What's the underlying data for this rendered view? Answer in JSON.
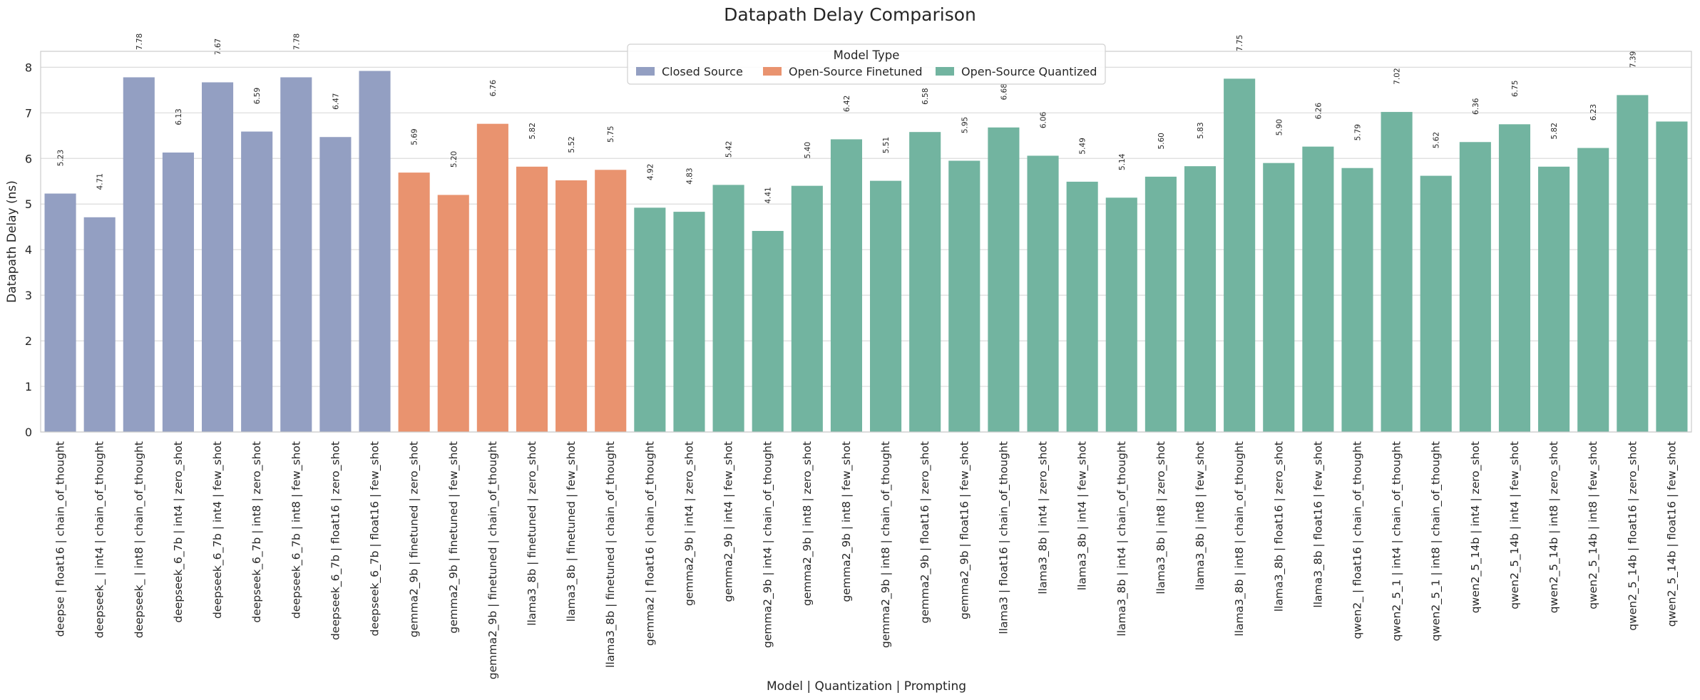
{
  "chart_data": {
    "type": "bar",
    "title": "Datapath Delay Comparison",
    "xlabel": "Model | Quantization | Prompting",
    "ylabel": "Datapath Delay (ns)",
    "ylim": [
      0,
      8.35
    ],
    "yticks": [
      "0",
      "1",
      "2",
      "3",
      "4",
      "5",
      "6",
      "7",
      "8"
    ],
    "grid": true,
    "legend": {
      "title": "Model Type",
      "placement": "top-center",
      "entries": [
        {
          "name": "Closed Source",
          "color": "#939fc2"
        },
        {
          "name": "Open-Source Finetuned",
          "color": "#e9936f"
        },
        {
          "name": "Open-Source Quantized",
          "color": "#72b4a0"
        }
      ]
    },
    "bars": [
      {
        "category": "deepse | float16 | chain_of_thought",
        "value": 5.23,
        "label": "5.23",
        "group": 0
      },
      {
        "category": "deepseek_ | int4 | chain_of_thought",
        "value": 4.71,
        "label": "4.71",
        "group": 0
      },
      {
        "category": "deepseek_ | int8 | chain_of_thought",
        "value": 7.78,
        "label": "7.78",
        "group": 0
      },
      {
        "category": "deepseek_6_7b | int4 | zero_shot",
        "value": 6.13,
        "label": "6.13",
        "group": 0
      },
      {
        "category": "deepseek_6_7b | int4 | few_shot",
        "value": 7.67,
        "label": "7.67",
        "group": 0
      },
      {
        "category": "deepseek_6_7b | int8 | zero_shot",
        "value": 6.59,
        "label": "6.59",
        "group": 0
      },
      {
        "category": "deepseek_6_7b | int8 | few_shot",
        "value": 7.78,
        "label": "7.78",
        "group": 0
      },
      {
        "category": "deepseek_6_7b | float16 | zero_shot",
        "value": 6.47,
        "label": "6.47",
        "group": 0
      },
      {
        "category": "deepseek_6_7b | float16 | few_shot",
        "value": 7.92,
        "label": "",
        "group": 0
      },
      {
        "category": "gemma2_9b | finetuned | zero_shot",
        "value": 5.69,
        "label": "5.69",
        "group": 1
      },
      {
        "category": "gemma2_9b | finetuned | few_shot",
        "value": 5.2,
        "label": "5.20",
        "group": 1
      },
      {
        "category": "gemma2_9b | finetuned | chain_of_thought",
        "value": 6.76,
        "label": "6.76",
        "group": 1
      },
      {
        "category": "llama3_8b | finetuned | zero_shot",
        "value": 5.82,
        "label": "5.82",
        "group": 1
      },
      {
        "category": "llama3_8b | finetuned | few_shot",
        "value": 5.52,
        "label": "5.52",
        "group": 1
      },
      {
        "category": "llama3_8b | finetuned | chain_of_thought",
        "value": 5.75,
        "label": "5.75",
        "group": 1
      },
      {
        "category": "gemma2 | float16 | chain_of_thought",
        "value": 4.92,
        "label": "4.92",
        "group": 2
      },
      {
        "category": "gemma2_9b | int4 | zero_shot",
        "value": 4.83,
        "label": "4.83",
        "group": 2
      },
      {
        "category": "gemma2_9b | int4 | few_shot",
        "value": 5.42,
        "label": "5.42",
        "group": 2
      },
      {
        "category": "gemma2_9b | int4 | chain_of_thought",
        "value": 4.41,
        "label": "4.41",
        "group": 2
      },
      {
        "category": "gemma2_9b | int8 | zero_shot",
        "value": 5.4,
        "label": "5.40",
        "group": 2
      },
      {
        "category": "gemma2_9b | int8 | few_shot",
        "value": 6.42,
        "label": "6.42",
        "group": 2
      },
      {
        "category": "gemma2_9b | int8 | chain_of_thought",
        "value": 5.51,
        "label": "5.51",
        "group": 2
      },
      {
        "category": "gemma2_9b | float16 | zero_shot",
        "value": 6.58,
        "label": "6.58",
        "group": 2
      },
      {
        "category": "gemma2_9b | float16 | few_shot",
        "value": 5.95,
        "label": "5.95",
        "group": 2
      },
      {
        "category": "llama3 | float16 | chain_of_thought",
        "value": 6.68,
        "label": "6.68",
        "group": 2
      },
      {
        "category": "llama3_8b | int4 | zero_shot",
        "value": 6.06,
        "label": "6.06",
        "group": 2
      },
      {
        "category": "llama3_8b | int4 | few_shot",
        "value": 5.49,
        "label": "5.49",
        "group": 2
      },
      {
        "category": "llama3_8b | int4 | chain_of_thought",
        "value": 5.14,
        "label": "5.14",
        "group": 2
      },
      {
        "category": "llama3_8b | int8 | zero_shot",
        "value": 5.6,
        "label": "5.60",
        "group": 2
      },
      {
        "category": "llama3_8b | int8 | few_shot",
        "value": 5.83,
        "label": "5.83",
        "group": 2
      },
      {
        "category": "llama3_8b | int8 | chain_of_thought",
        "value": 7.75,
        "label": "7.75",
        "group": 2
      },
      {
        "category": "llama3_8b | float16 | zero_shot",
        "value": 5.9,
        "label": "5.90",
        "group": 2
      },
      {
        "category": "llama3_8b | float16 | few_shot",
        "value": 6.26,
        "label": "6.26",
        "group": 2
      },
      {
        "category": "qwen2_ | float16 | chain_of_thought",
        "value": 5.79,
        "label": "5.79",
        "group": 2
      },
      {
        "category": "qwen2_5_1 | int4 | chain_of_thought",
        "value": 7.02,
        "label": "7.02",
        "group": 2
      },
      {
        "category": "qwen2_5_1 | int8 | chain_of_thought",
        "value": 5.62,
        "label": "5.62",
        "group": 2
      },
      {
        "category": "qwen2_5_14b | int4 | zero_shot",
        "value": 6.36,
        "label": "6.36",
        "group": 2
      },
      {
        "category": "qwen2_5_14b | int4 | few_shot",
        "value": 6.75,
        "label": "6.75",
        "group": 2
      },
      {
        "category": "qwen2_5_14b | int8 | zero_shot",
        "value": 5.82,
        "label": "5.82",
        "group": 2
      },
      {
        "category": "qwen2_5_14b | int8 | few_shot",
        "value": 6.23,
        "label": "6.23",
        "group": 2
      },
      {
        "category": "qwen2_5_14b | float16 | zero_shot",
        "value": 7.39,
        "label": "7.39",
        "group": 2
      },
      {
        "category": "qwen2_5_14b | float16 | few_shot",
        "value": 6.81,
        "label": "",
        "group": 2
      }
    ]
  }
}
